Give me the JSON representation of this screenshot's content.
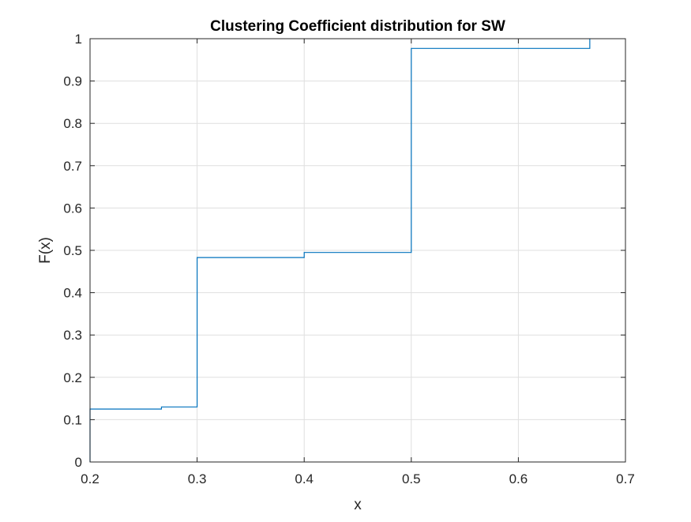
{
  "chart_data": {
    "type": "line",
    "step": true,
    "title": "Clustering Coefficient distribution for SW",
    "xlabel": "x",
    "ylabel": "F(x)",
    "xlim": [
      0.2,
      0.7
    ],
    "ylim": [
      0,
      1
    ],
    "xticks": [
      0.2,
      0.3,
      0.4,
      0.5,
      0.6,
      0.7
    ],
    "xtick_labels": [
      "0.2",
      "0.3",
      "0.4",
      "0.5",
      "0.6",
      "0.7"
    ],
    "yticks": [
      0,
      0.1,
      0.2,
      0.3,
      0.4,
      0.5,
      0.6,
      0.7,
      0.8,
      0.9,
      1
    ],
    "ytick_labels": [
      "0",
      "0.1",
      "0.2",
      "0.3",
      "0.4",
      "0.5",
      "0.6",
      "0.7",
      "0.8",
      "0.9",
      "1"
    ],
    "grid": true,
    "box": true,
    "series": [
      {
        "color": "#0072BD",
        "x": [
          0.2,
          0.2,
          0.2667,
          0.2667,
          0.3,
          0.3,
          0.4,
          0.4,
          0.5,
          0.5,
          0.6667,
          0.6667
        ],
        "y": [
          0,
          0.125,
          0.125,
          0.13,
          0.13,
          0.483,
          0.483,
          0.495,
          0.495,
          0.977,
          0.977,
          1.0
        ]
      }
    ]
  }
}
